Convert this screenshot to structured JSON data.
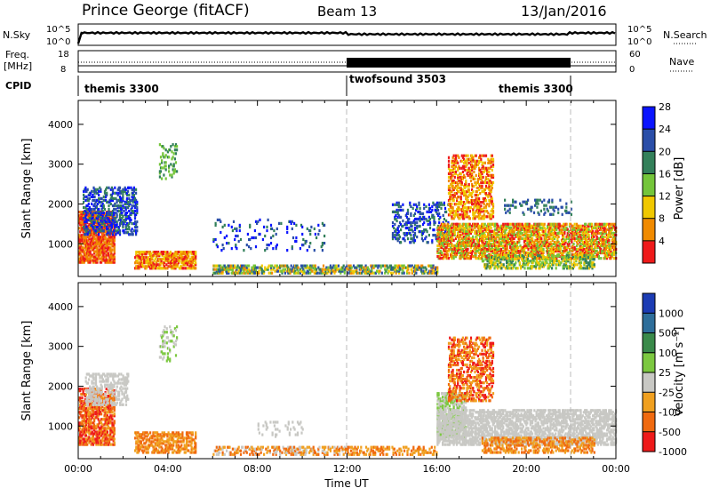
{
  "header": {
    "title": "Prince George (fitACF)",
    "beam": "Beam 13",
    "date": "13/Jan/2016"
  },
  "strips": {
    "nsky_label": "N.Sky",
    "nsky_ticks": [
      "10^5",
      "10^0"
    ],
    "nsearch_label": "N.Search",
    "nsearch_ticks": [
      "10^5",
      "10^0"
    ],
    "freq_label": "Freq.",
    "freq_unit": "[MHz]",
    "freq_ticks": [
      "18",
      "8"
    ],
    "nave_label": "Nave",
    "nave_ticks": [
      "60",
      "0"
    ],
    "cpid_label": "CPID",
    "cpid_segments": [
      {
        "name": "themis 3300",
        "start_hour": 0,
        "end_hour": 12
      },
      {
        "name": "twofsound 3503",
        "start_hour": 12,
        "end_hour": 22
      },
      {
        "name": "themis 3300",
        "start_hour": 22,
        "end_hour": 24
      }
    ]
  },
  "chart_data": [
    {
      "type": "heatmap",
      "name": "power",
      "ylabel": "Slant Range [km]",
      "xlim": [
        0,
        24
      ],
      "ylim": [
        180,
        4600
      ],
      "yticks": [
        1000,
        2000,
        3000,
        4000
      ],
      "colorbar_label": "Power [dB]",
      "colorbar_ticks": [
        "4",
        "8",
        "12",
        "16",
        "20",
        "24",
        "28"
      ],
      "colorbar_colors": [
        "#0a14ff",
        "#2a4ea8",
        "#33805a",
        "#74c53a",
        "#f0c800",
        "#f08a00",
        "#ee1a1a"
      ]
    },
    {
      "type": "heatmap",
      "name": "velocity",
      "ylabel": "Slant Range [km]",
      "xlabel": "Time UT",
      "xlim": [
        0,
        24
      ],
      "ylim": [
        180,
        4600
      ],
      "yticks": [
        1000,
        2000,
        3000,
        4000
      ],
      "xticks": [
        "00:00",
        "04:00",
        "08:00",
        "12:00",
        "16:00",
        "20:00",
        "00:00"
      ],
      "colorbar_label": "Velocity [m s⁻¹]",
      "colorbar_ticks": [
        "1000",
        "500",
        "100",
        "25",
        "-25",
        "-100",
        "-500",
        "-1000"
      ],
      "colorbar_colors": [
        "#1c3cb4",
        "#2e6e9a",
        "#3a8a4a",
        "#7cc840",
        "#c8c8c4",
        "#f0a020",
        "#f06a10",
        "#ee1a1a"
      ]
    }
  ]
}
